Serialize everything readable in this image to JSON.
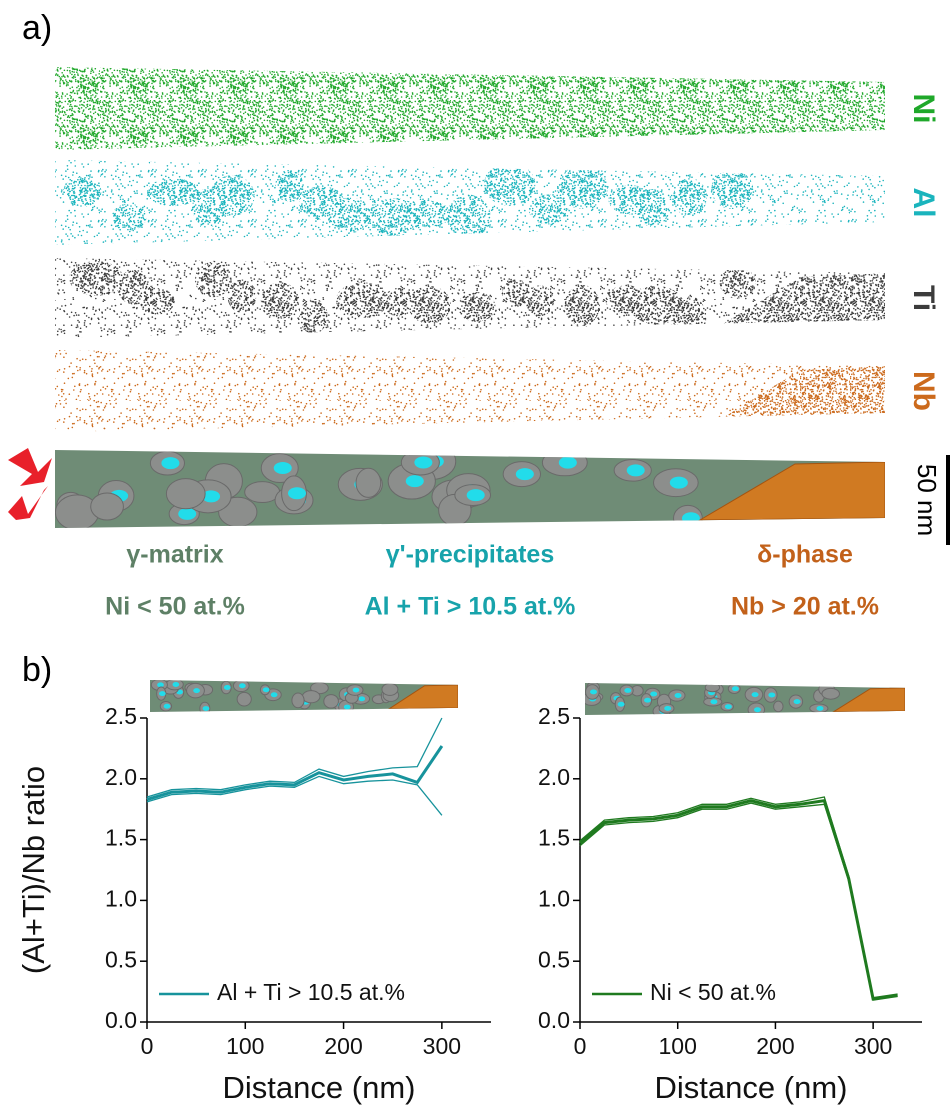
{
  "panel_a": {
    "label": "a)",
    "elements": [
      {
        "name": "Ni",
        "color": "#1fa82a"
      },
      {
        "name": "Al",
        "color": "#1ab4bd"
      },
      {
        "name": "Ti",
        "color": "#3c3c3c"
      },
      {
        "name": "Nb",
        "color": "#cc6a1c"
      }
    ],
    "scale_bar": "50 nm",
    "phases": [
      {
        "name": "γ-matrix",
        "criterion": "Ni < 50 at.%",
        "color": "#5e8066"
      },
      {
        "name": "γ'-precipitates",
        "criterion": "Al + Ti > 10.5 at.%",
        "color": "#17a3ab"
      },
      {
        "name": "δ-phase",
        "criterion": "Nb > 20 at.%",
        "color": "#c2611a"
      }
    ]
  },
  "panel_b": {
    "label": "b)"
  },
  "chart_data": [
    {
      "type": "line",
      "y_label": "(Al+Ti)/Nb ratio",
      "x_label": "Distance (nm)",
      "x": [
        0,
        25,
        50,
        75,
        100,
        125,
        150,
        175,
        200,
        225,
        250,
        275,
        300
      ],
      "series": [
        {
          "name": "Al + Ti > 10.5 at.%",
          "color": "#17939c",
          "values": [
            1.83,
            1.89,
            1.9,
            1.89,
            1.93,
            1.96,
            1.95,
            2.05,
            1.99,
            2.02,
            2.04,
            1.97,
            2.27
          ],
          "upper": [
            1.85,
            1.91,
            1.92,
            1.91,
            1.95,
            1.98,
            1.97,
            2.08,
            2.02,
            2.06,
            2.09,
            2.1,
            2.5
          ],
          "lower": [
            1.81,
            1.87,
            1.88,
            1.87,
            1.91,
            1.94,
            1.93,
            2.02,
            1.96,
            1.98,
            1.99,
            1.95,
            1.7
          ]
        }
      ],
      "xlim": [
        0,
        350
      ],
      "xticks": [
        0,
        100,
        200,
        300
      ],
      "ylim": [
        0,
        2.5
      ],
      "yticks": [
        {
          "value": 0,
          "label": "0.0"
        },
        0.5,
        {
          "value": 1,
          "label": "1.0"
        },
        1.5,
        {
          "value": 2,
          "label": "2.0"
        },
        2.5
      ],
      "legend": "lower left"
    },
    {
      "type": "line",
      "x_label": "Distance (nm)",
      "x": [
        0,
        25,
        50,
        75,
        100,
        125,
        150,
        175,
        200,
        225,
        250,
        275,
        300,
        325
      ],
      "series": [
        {
          "name": "Ni < 50 at.%",
          "color": "#1f7a1f",
          "values": [
            1.47,
            1.64,
            1.66,
            1.67,
            1.7,
            1.77,
            1.77,
            1.82,
            1.77,
            1.79,
            1.82,
            1.18,
            0.19,
            0.22
          ],
          "upper": [
            1.49,
            1.66,
            1.68,
            1.69,
            1.72,
            1.79,
            1.79,
            1.84,
            1.79,
            1.81,
            1.85,
            1.2,
            0.2,
            0.23
          ],
          "lower": [
            1.45,
            1.62,
            1.64,
            1.65,
            1.68,
            1.75,
            1.75,
            1.8,
            1.75,
            1.77,
            1.79,
            1.16,
            0.18,
            0.21
          ]
        }
      ],
      "xlim": [
        0,
        350
      ],
      "xticks": [
        0,
        100,
        200,
        300
      ],
      "ylim": [
        0,
        2.5
      ],
      "yticks": [
        {
          "value": 0,
          "label": "0.0"
        },
        0.5,
        {
          "value": 1,
          "label": "1.0"
        },
        1.5,
        {
          "value": 2,
          "label": "2.0"
        },
        2.5
      ],
      "legend": "lower left"
    }
  ]
}
